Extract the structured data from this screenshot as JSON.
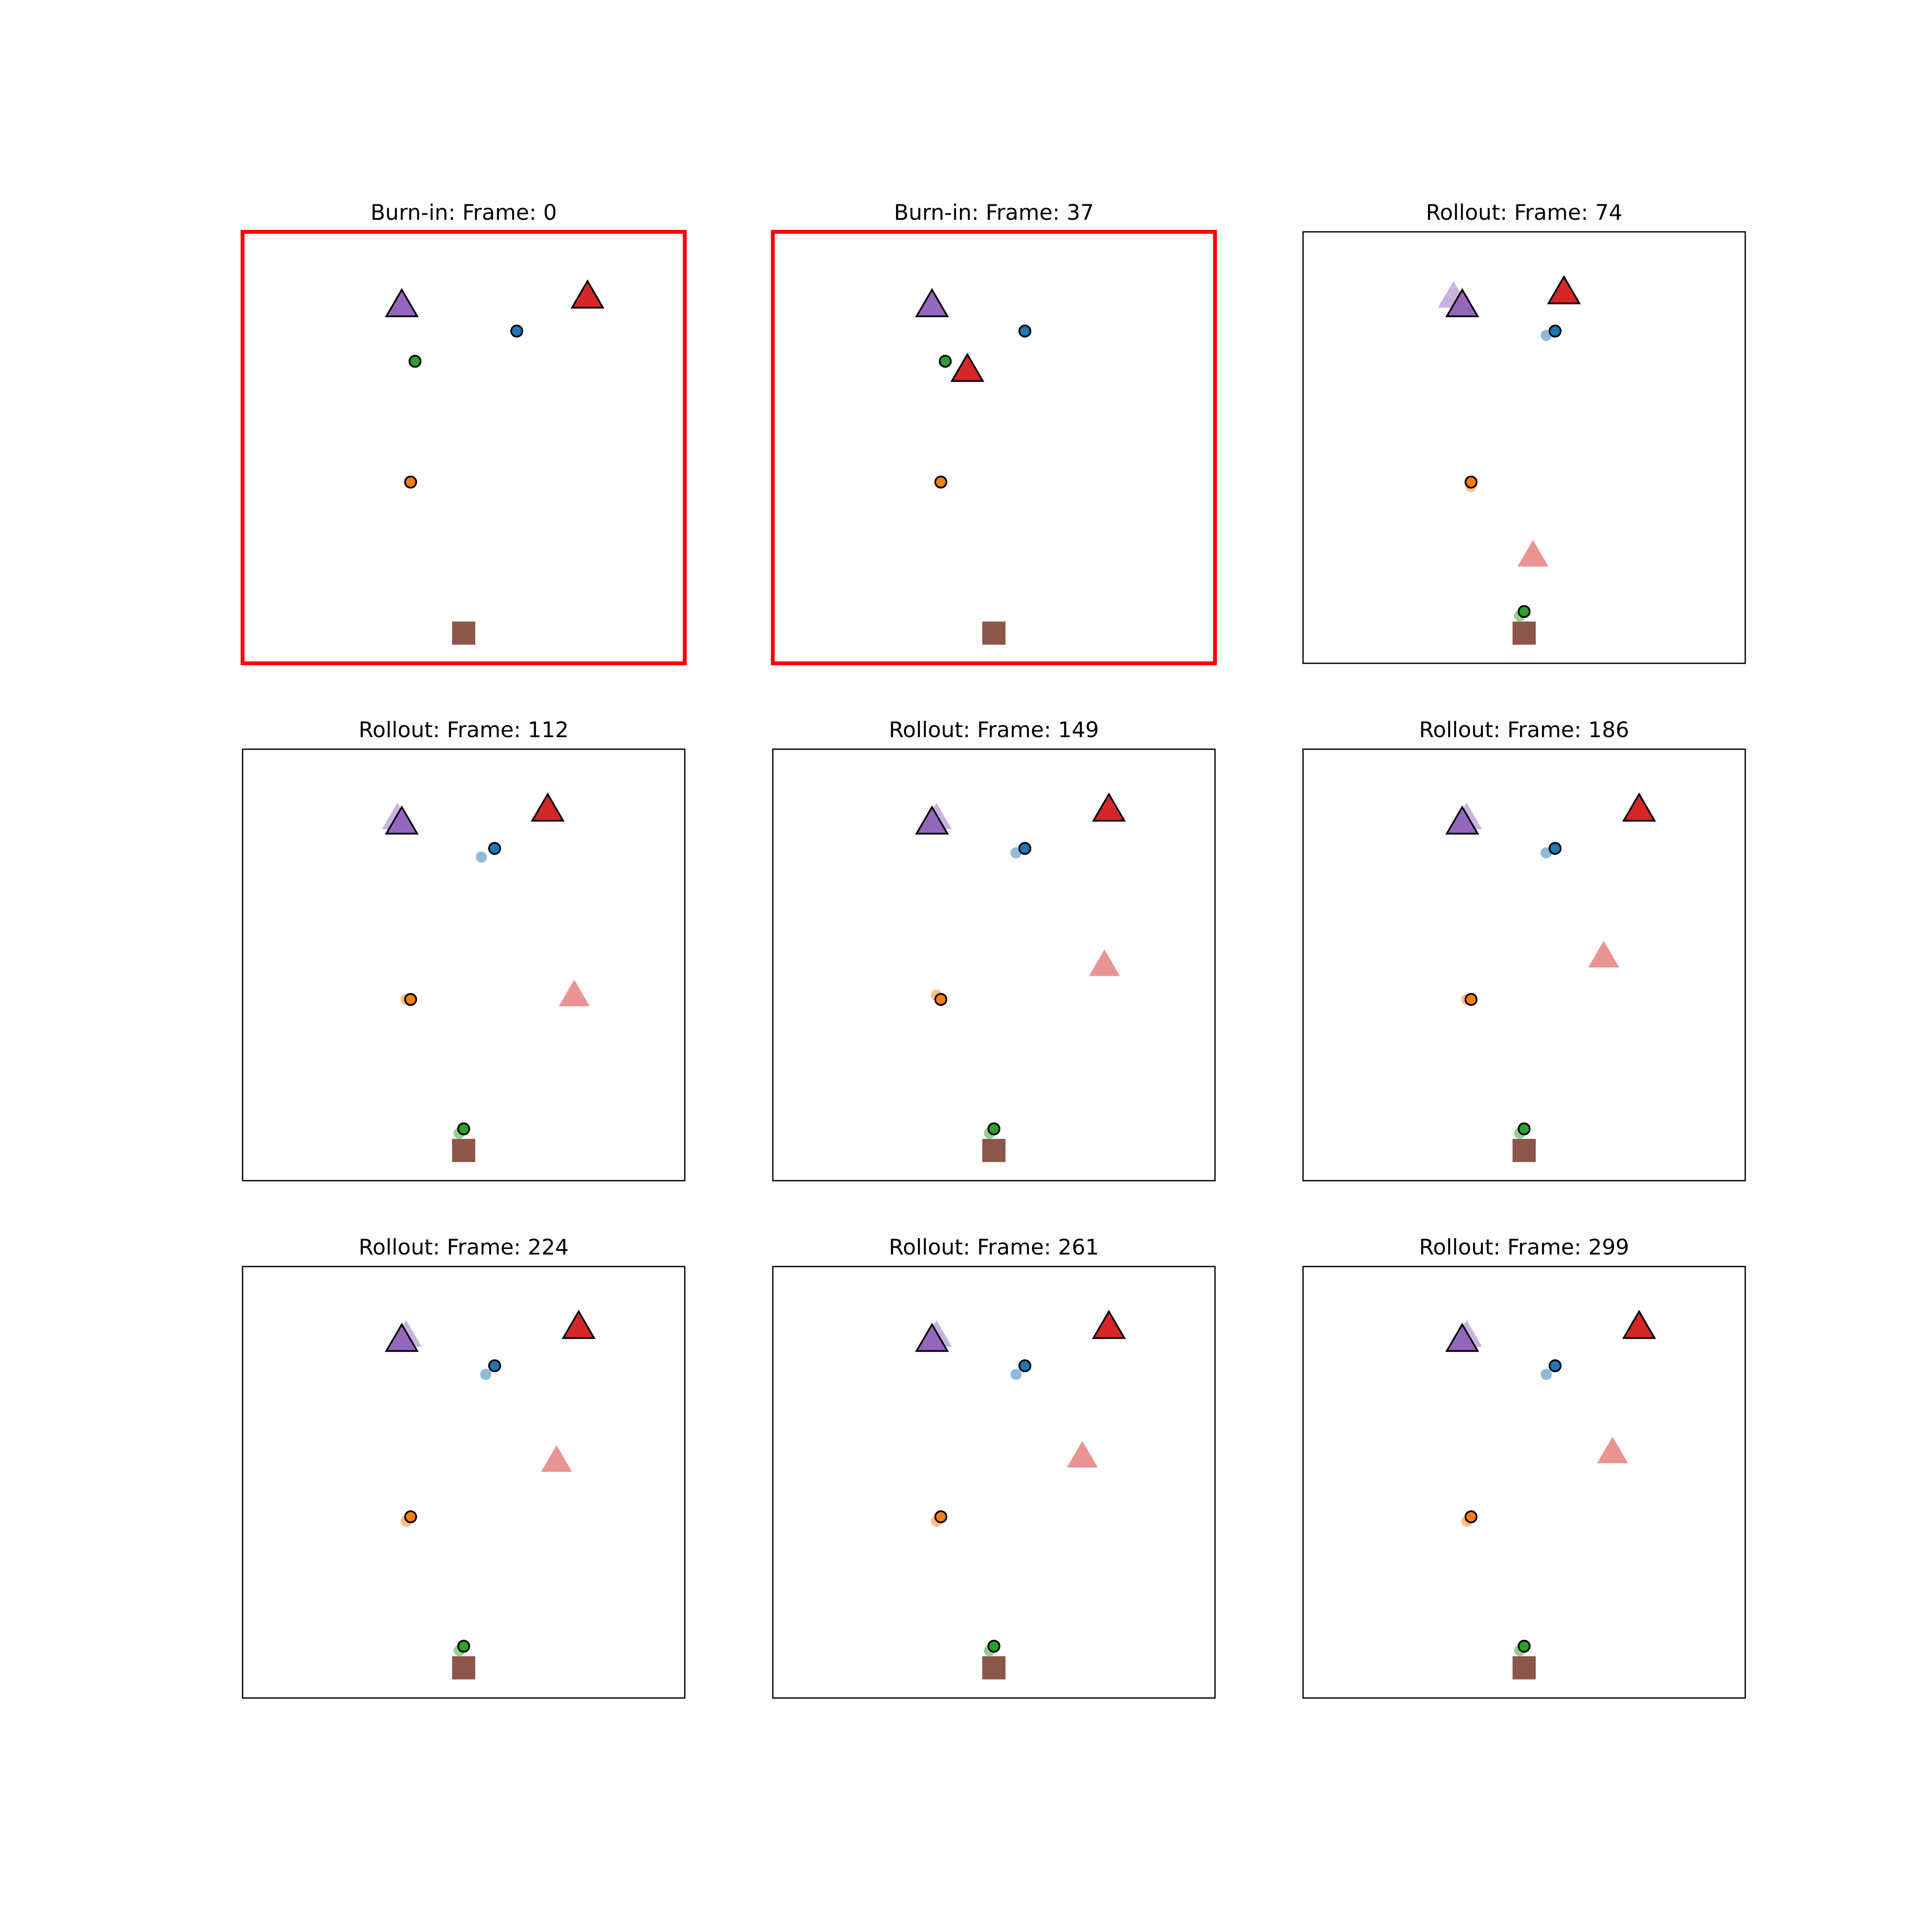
{
  "figure": {
    "panel_titles": [
      "Burn-in: Frame: 0",
      "Burn-in: Frame: 37",
      "Rollout: Frame: 74",
      "Rollout: Frame: 112",
      "Rollout: Frame: 149",
      "Rollout: Frame: 186",
      "Rollout: Frame: 224",
      "Rollout: Frame: 261",
      "Rollout: Frame: 299"
    ]
  },
  "chart_data": {
    "type": "scatter",
    "grid": false,
    "axes_visible": false,
    "xlim": [
      0,
      1
    ],
    "ylim": [
      0,
      1
    ],
    "colors": {
      "burnin_frame": "#ff0000",
      "blue": "#1f77b4",
      "green": "#2ca02c",
      "orange": "#ff7f0e",
      "purple": "#9467bd",
      "red": "#d62728",
      "brown": "#8c564b"
    },
    "panels": [
      {
        "title": "Burn-in: Frame: 0",
        "phase": "burn-in",
        "frame": 0,
        "actual": {
          "purple_triangle": [
            0.36,
            0.83
          ],
          "red_triangle": [
            0.78,
            0.85
          ],
          "blue_circle": [
            0.62,
            0.77
          ],
          "green_circle": [
            0.39,
            0.7
          ],
          "orange_circle": [
            0.38,
            0.42
          ],
          "brown_square": [
            0.5,
            0.07
          ]
        },
        "predicted": null
      },
      {
        "title": "Burn-in: Frame: 37",
        "phase": "burn-in",
        "frame": 37,
        "actual": {
          "purple_triangle": [
            0.36,
            0.83
          ],
          "red_triangle": [
            0.44,
            0.68
          ],
          "blue_circle": [
            0.57,
            0.77
          ],
          "green_circle": [
            0.39,
            0.7
          ],
          "orange_circle": [
            0.38,
            0.42
          ],
          "brown_square": [
            0.5,
            0.07
          ]
        },
        "predicted": null
      },
      {
        "title": "Rollout: Frame: 74",
        "phase": "rollout",
        "frame": 74,
        "actual": {
          "purple_triangle": [
            0.36,
            0.83
          ],
          "red_triangle": [
            0.59,
            0.86
          ],
          "blue_circle": [
            0.57,
            0.77
          ],
          "green_circle": [
            0.5,
            0.12
          ],
          "orange_circle": [
            0.38,
            0.42
          ],
          "brown_square": [
            0.5,
            0.07
          ]
        },
        "predicted": {
          "purple_triangle": [
            0.34,
            0.85
          ],
          "red_triangle": [
            0.52,
            0.25
          ],
          "blue_circle": [
            0.55,
            0.76
          ],
          "green_circle": [
            0.49,
            0.11
          ],
          "orange_circle": [
            0.38,
            0.41
          ]
        }
      },
      {
        "title": "Rollout: Frame: 112",
        "phase": "rollout",
        "frame": 112,
        "actual": {
          "purple_triangle": [
            0.36,
            0.83
          ],
          "red_triangle": [
            0.69,
            0.86
          ],
          "blue_circle": [
            0.57,
            0.77
          ],
          "green_circle": [
            0.5,
            0.12
          ],
          "orange_circle": [
            0.38,
            0.42
          ],
          "brown_square": [
            0.5,
            0.07
          ]
        },
        "predicted": {
          "purple_triangle": [
            0.35,
            0.84
          ],
          "red_triangle": [
            0.75,
            0.43
          ],
          "blue_circle": [
            0.54,
            0.75
          ],
          "green_circle": [
            0.49,
            0.11
          ],
          "orange_circle": [
            0.37,
            0.42
          ]
        }
      },
      {
        "title": "Rollout: Frame: 149",
        "phase": "rollout",
        "frame": 149,
        "actual": {
          "purple_triangle": [
            0.36,
            0.83
          ],
          "red_triangle": [
            0.76,
            0.86
          ],
          "blue_circle": [
            0.57,
            0.77
          ],
          "green_circle": [
            0.5,
            0.12
          ],
          "orange_circle": [
            0.38,
            0.42
          ],
          "brown_square": [
            0.5,
            0.07
          ]
        },
        "predicted": {
          "purple_triangle": [
            0.37,
            0.84
          ],
          "red_triangle": [
            0.75,
            0.5
          ],
          "blue_circle": [
            0.55,
            0.76
          ],
          "green_circle": [
            0.49,
            0.11
          ],
          "orange_circle": [
            0.37,
            0.43
          ]
        }
      },
      {
        "title": "Rollout: Frame: 186",
        "phase": "rollout",
        "frame": 186,
        "actual": {
          "purple_triangle": [
            0.36,
            0.83
          ],
          "red_triangle": [
            0.76,
            0.86
          ],
          "blue_circle": [
            0.57,
            0.77
          ],
          "green_circle": [
            0.5,
            0.12
          ],
          "orange_circle": [
            0.38,
            0.42
          ],
          "brown_square": [
            0.5,
            0.07
          ]
        },
        "predicted": {
          "purple_triangle": [
            0.37,
            0.84
          ],
          "red_triangle": [
            0.68,
            0.52
          ],
          "blue_circle": [
            0.55,
            0.76
          ],
          "green_circle": [
            0.49,
            0.11
          ],
          "orange_circle": [
            0.37,
            0.42
          ]
        }
      },
      {
        "title": "Rollout: Frame: 224",
        "phase": "rollout",
        "frame": 224,
        "actual": {
          "purple_triangle": [
            0.36,
            0.83
          ],
          "red_triangle": [
            0.76,
            0.86
          ],
          "blue_circle": [
            0.57,
            0.77
          ],
          "green_circle": [
            0.5,
            0.12
          ],
          "orange_circle": [
            0.38,
            0.42
          ],
          "brown_square": [
            0.5,
            0.07
          ]
        },
        "predicted": {
          "purple_triangle": [
            0.37,
            0.84
          ],
          "red_triangle": [
            0.71,
            0.55
          ],
          "blue_circle": [
            0.55,
            0.75
          ],
          "green_circle": [
            0.49,
            0.11
          ],
          "orange_circle": [
            0.37,
            0.41
          ]
        }
      },
      {
        "title": "Rollout: Frame: 261",
        "phase": "rollout",
        "frame": 261,
        "actual": {
          "purple_triangle": [
            0.36,
            0.83
          ],
          "red_triangle": [
            0.76,
            0.86
          ],
          "blue_circle": [
            0.57,
            0.77
          ],
          "green_circle": [
            0.5,
            0.12
          ],
          "orange_circle": [
            0.38,
            0.42
          ],
          "brown_square": [
            0.5,
            0.07
          ]
        },
        "predicted": {
          "purple_triangle": [
            0.37,
            0.84
          ],
          "red_triangle": [
            0.7,
            0.56
          ],
          "blue_circle": [
            0.55,
            0.75
          ],
          "green_circle": [
            0.49,
            0.11
          ],
          "orange_circle": [
            0.37,
            0.41
          ]
        }
      },
      {
        "title": "Rollout: Frame: 299",
        "phase": "rollout",
        "frame": 299,
        "actual": {
          "purple_triangle": [
            0.36,
            0.83
          ],
          "red_triangle": [
            0.76,
            0.86
          ],
          "blue_circle": [
            0.57,
            0.77
          ],
          "green_circle": [
            0.5,
            0.12
          ],
          "orange_circle": [
            0.38,
            0.42
          ],
          "brown_square": [
            0.5,
            0.07
          ]
        },
        "predicted": {
          "purple_triangle": [
            0.37,
            0.84
          ],
          "red_triangle": [
            0.7,
            0.57
          ],
          "blue_circle": [
            0.55,
            0.75
          ],
          "green_circle": [
            0.49,
            0.11
          ],
          "orange_circle": [
            0.37,
            0.41
          ]
        }
      }
    ]
  }
}
